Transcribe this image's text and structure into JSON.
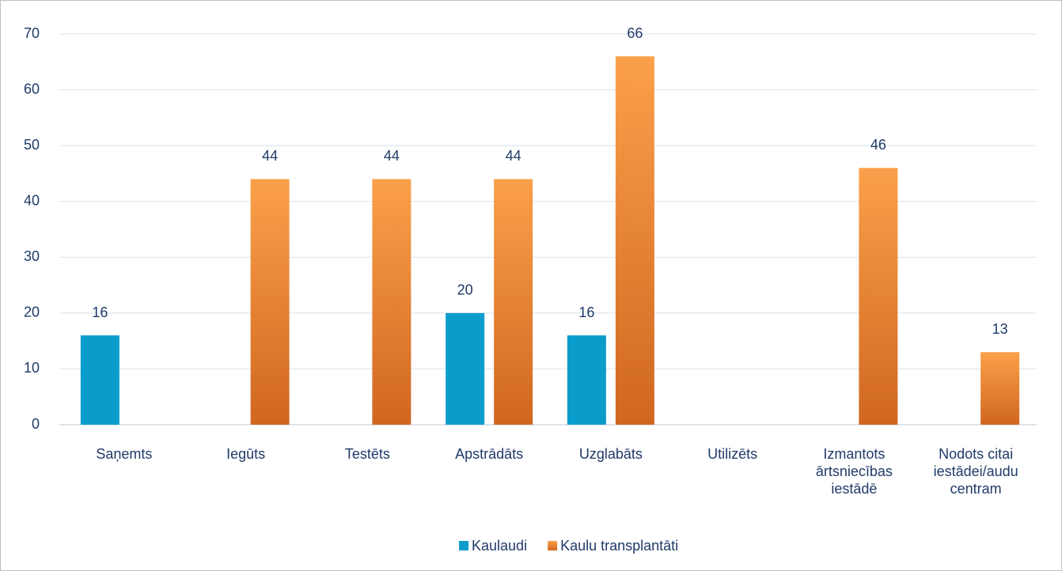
{
  "chart_data": {
    "type": "bar",
    "categories": [
      "Saņemts",
      "Iegūts",
      "Testēts",
      "Apstrādāts",
      "Uzglabāts",
      "Utilizēts",
      "Izmantots ārtsniecības iestādē",
      "Nodots citai iestādei/audu centram"
    ],
    "series": [
      {
        "name": "Kaulaudi",
        "color": "#0a9dcc",
        "values": [
          16,
          null,
          null,
          20,
          16,
          null,
          null,
          null
        ]
      },
      {
        "name": "Kaulu transplantāti",
        "color": "#f39332",
        "values": [
          null,
          44,
          44,
          44,
          66,
          null,
          46,
          13
        ]
      }
    ],
    "ylim": [
      0,
      70
    ],
    "yticks": [
      0,
      10,
      20,
      30,
      40,
      50,
      60,
      70
    ],
    "grid": true,
    "legend": "bottom"
  }
}
